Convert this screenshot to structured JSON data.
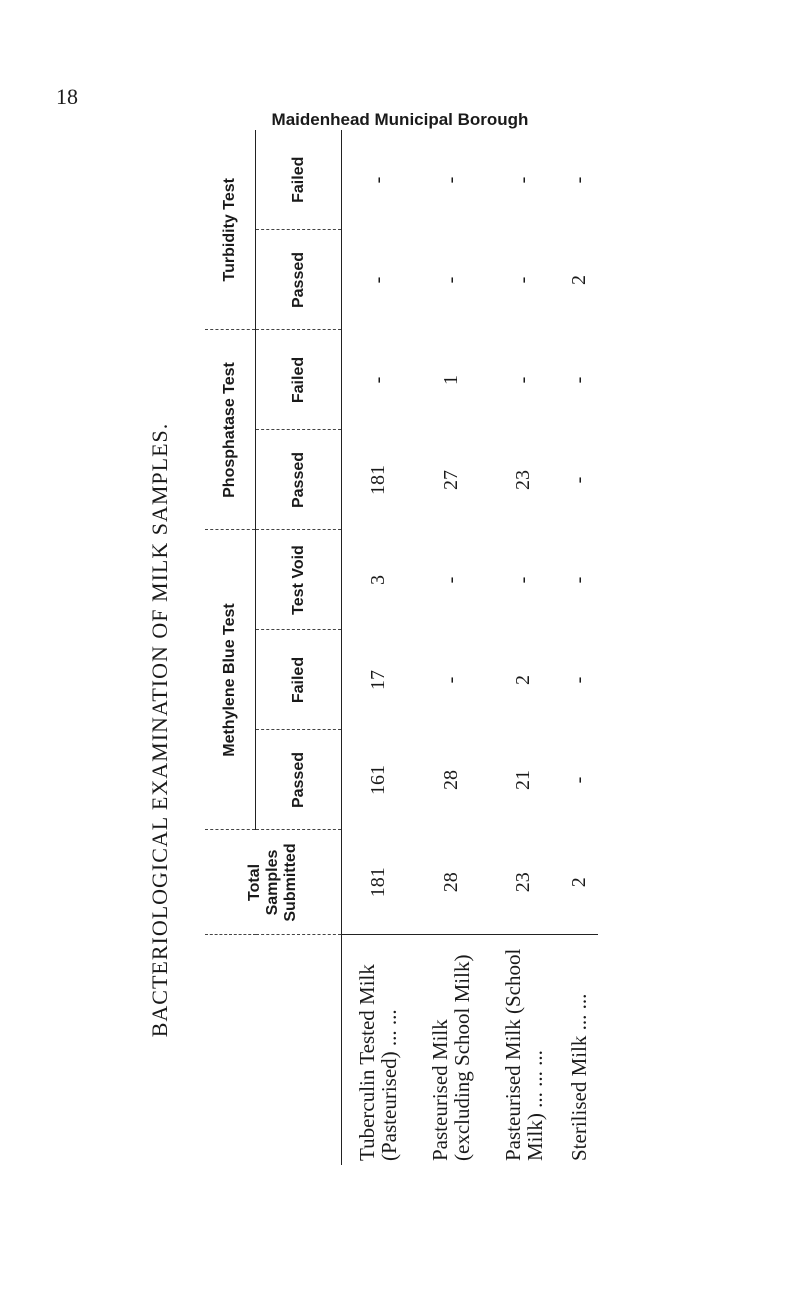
{
  "page_number": "18",
  "title": "Maidenhead Municipal Borough",
  "side_heading": "BACTERIOLOGICAL EXAMINATION OF MILK SAMPLES.",
  "table": {
    "headers": {
      "total": "Total Samples Submitted",
      "methylene": "Methylene Blue Test",
      "phosphatase": "Phosphatase Test",
      "turbidity": "Turbidity Test",
      "passed": "Passed",
      "failed": "Failed",
      "test_void": "Test Void"
    },
    "rows": [
      {
        "label": "Tuberculin Tested Milk (Pasteurised) ... ...",
        "total": "181",
        "mb_passed": "161",
        "mb_failed": "17",
        "mb_void": "3",
        "ph_passed": "181",
        "ph_failed": "-",
        "tu_passed": "-",
        "tu_failed": "-"
      },
      {
        "label": "Pasteurised Milk (excluding School Milk)",
        "total": "28",
        "mb_passed": "28",
        "mb_failed": "-",
        "mb_void": "-",
        "ph_passed": "27",
        "ph_failed": "1",
        "tu_passed": "-",
        "tu_failed": "-"
      },
      {
        "label": "Pasteurised Milk (School Milk) ... ... ...",
        "total": "23",
        "mb_passed": "21",
        "mb_failed": "2",
        "mb_void": "-",
        "ph_passed": "23",
        "ph_failed": "-",
        "tu_passed": "-",
        "tu_failed": "-"
      },
      {
        "label": "Sterilised Milk ... ...",
        "total": "2",
        "mb_passed": "-",
        "mb_failed": "-",
        "mb_void": "-",
        "ph_passed": "-",
        "ph_failed": "-",
        "tu_passed": "2",
        "tu_failed": "-"
      }
    ]
  }
}
